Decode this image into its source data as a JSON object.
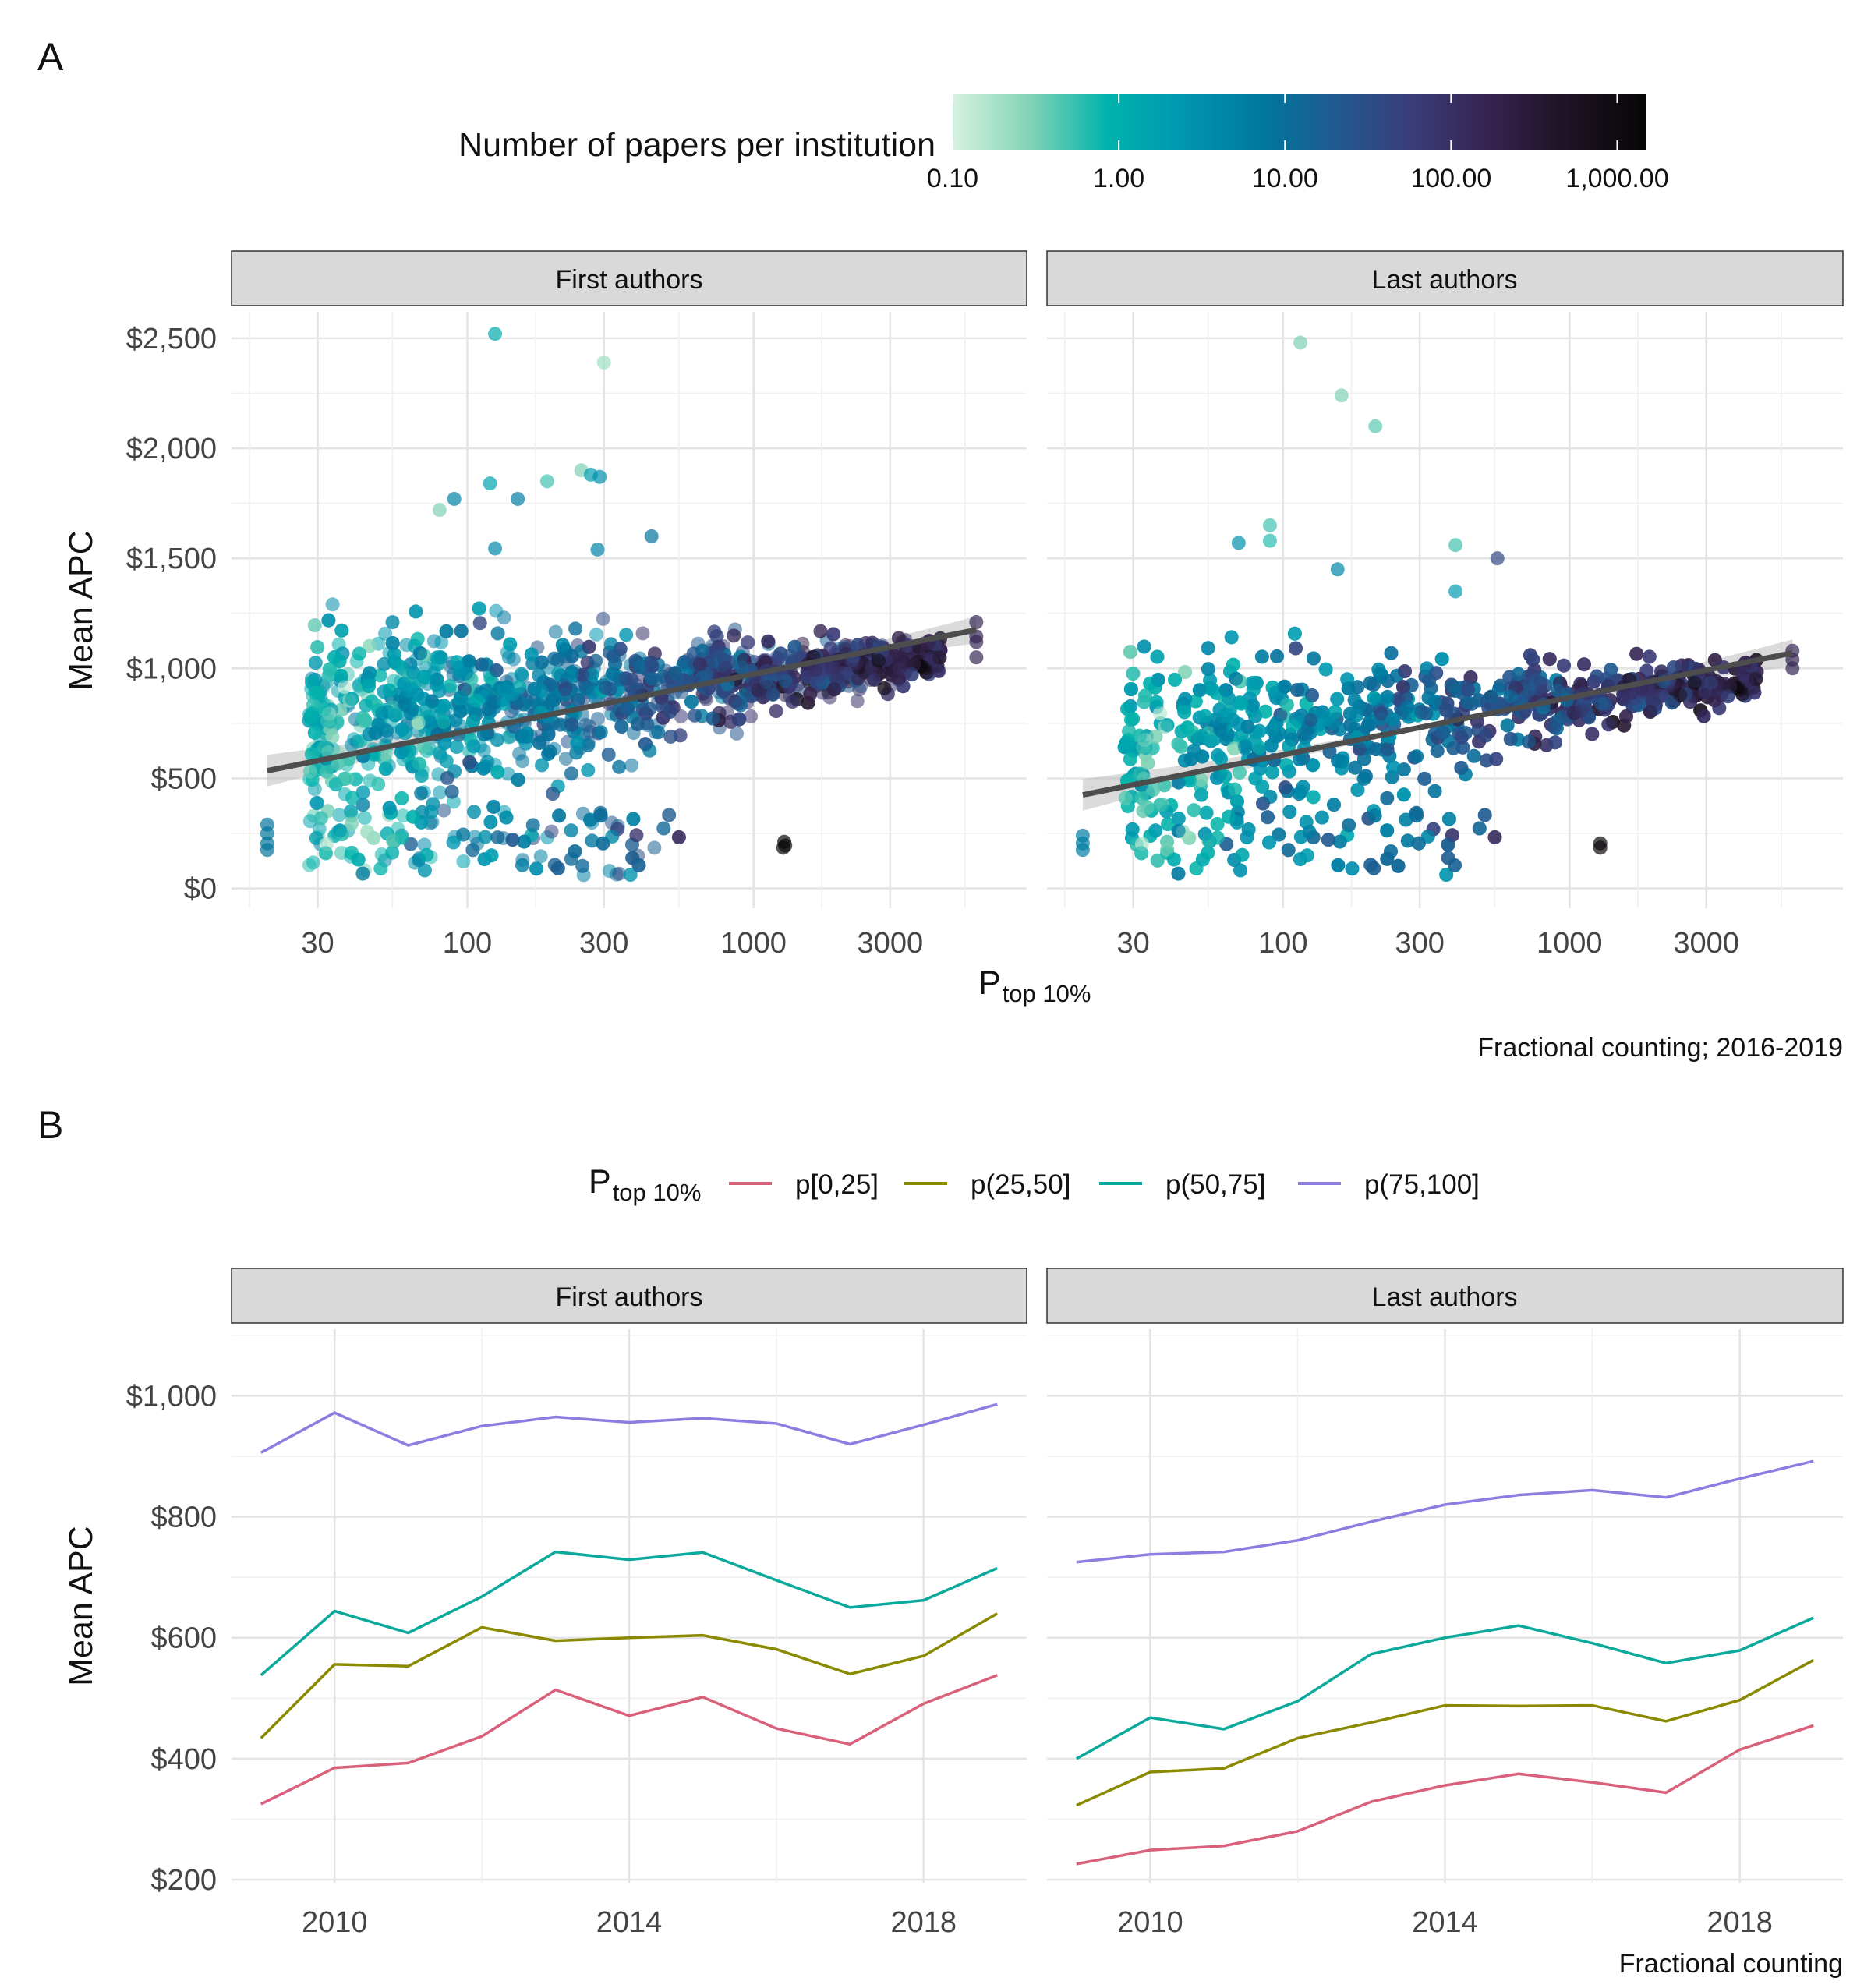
{
  "panel_labels": {
    "a": "A",
    "b": "B"
  },
  "colors": {
    "colorbar": [
      "#d6f2e1",
      "#83d3b6",
      "#00b3ac",
      "#0096b0",
      "#00789f",
      "#21598f",
      "#3a3b78",
      "#35234d",
      "#1d1322",
      "#060606"
    ],
    "regression_line": "#4d4d4d",
    "ribbon": "#bdbdbd",
    "p0_25": "#d9607a",
    "p25_50": "#8a8a00",
    "p50_75": "#0ba89c",
    "p75_100": "#8c7ee0"
  },
  "chart_data": [
    {
      "type": "scatter",
      "title": "",
      "xlabel": "P",
      "xlabel_sub": "top 10%",
      "ylabel": "Mean APC",
      "x_scale": "log10",
      "xlim": [
        15,
        9000
      ],
      "ylim": [
        -90,
        2620
      ],
      "x_ticks": [
        30,
        100,
        300,
        1000,
        3000
      ],
      "x_tick_labels": [
        "30",
        "100",
        "300",
        "1000",
        "3000"
      ],
      "y_ticks": [
        0,
        500,
        1000,
        1500,
        2000,
        2500
      ],
      "y_tick_labels": [
        "$0",
        "$500",
        "$1,000",
        "$1,500",
        "$2,000",
        "$2,500"
      ],
      "grid": true,
      "legend_position": "top",
      "color_legend": {
        "title": "Number of papers per institution",
        "scale": "log10",
        "range": [
          0.1,
          1500
        ],
        "ticks": [
          0.1,
          1,
          10,
          100,
          1000
        ],
        "tick_labels": [
          "0.10",
          "1.00",
          "10.00",
          "100.00",
          "1,000.00"
        ]
      },
      "caption": "Fractional counting; 2016-2019",
      "facets": [
        {
          "name": "First authors",
          "trend": {
            "x": [
              20,
              6000
            ],
            "y": [
              535,
              1175
            ]
          },
          "highlighted_points": [
            {
              "x": 125,
              "y": 2520,
              "papers": 1.2
            },
            {
              "x": 300,
              "y": 2390,
              "papers": 0.2
            },
            {
              "x": 250,
              "y": 1900,
              "papers": 0.3
            },
            {
              "x": 270,
              "y": 1880,
              "papers": 2
            },
            {
              "x": 290,
              "y": 1870,
              "papers": 3
            },
            {
              "x": 90,
              "y": 1770,
              "papers": 5
            },
            {
              "x": 120,
              "y": 1840,
              "papers": 1.5
            },
            {
              "x": 190,
              "y": 1850,
              "papers": 0.5
            },
            {
              "x": 80,
              "y": 1720,
              "papers": 0.3
            },
            {
              "x": 150,
              "y": 1770,
              "papers": 6
            },
            {
              "x": 125,
              "y": 1545,
              "papers": 4
            },
            {
              "x": 285,
              "y": 1540,
              "papers": 5
            },
            {
              "x": 440,
              "y": 1600,
              "papers": 8
            },
            {
              "x": 1280,
              "y": 212,
              "papers": 1100
            },
            {
              "x": 1290,
              "y": 195,
              "papers": 1200
            },
            {
              "x": 1270,
              "y": 185,
              "papers": 1000
            },
            {
              "x": 20,
              "y": 290,
              "papers": 8
            },
            {
              "x": 20,
              "y": 250,
              "papers": 8
            },
            {
              "x": 20,
              "y": 205,
              "papers": 8
            },
            {
              "x": 20,
              "y": 175,
              "papers": 8
            },
            {
              "x": 6000,
              "y": 1210,
              "papers": 150
            },
            {
              "x": 6000,
              "y": 1145,
              "papers": 150
            },
            {
              "x": 6000,
              "y": 1120,
              "papers": 150
            },
            {
              "x": 6000,
              "y": 1050,
              "papers": 150
            }
          ]
        },
        {
          "name": "Last authors",
          "trend": {
            "x": [
              20,
              6000
            ],
            "y": [
              425,
              1070
            ]
          },
          "highlighted_points": [
            {
              "x": 115,
              "y": 2480,
              "papers": 0.3
            },
            {
              "x": 160,
              "y": 2240,
              "papers": 0.3
            },
            {
              "x": 210,
              "y": 2100,
              "papers": 0.4
            },
            {
              "x": 90,
              "y": 1650,
              "papers": 0.5
            },
            {
              "x": 90,
              "y": 1580,
              "papers": 0.6
            },
            {
              "x": 70,
              "y": 1570,
              "papers": 3
            },
            {
              "x": 400,
              "y": 1560,
              "papers": 0.5
            },
            {
              "x": 155,
              "y": 1450,
              "papers": 4
            },
            {
              "x": 560,
              "y": 1500,
              "papers": 40
            },
            {
              "x": 400,
              "y": 1350,
              "papers": 2
            },
            {
              "x": 1280,
              "y": 205,
              "papers": 1100
            },
            {
              "x": 1280,
              "y": 185,
              "papers": 1000
            },
            {
              "x": 20,
              "y": 240,
              "papers": 6
            },
            {
              "x": 20,
              "y": 205,
              "papers": 6
            },
            {
              "x": 20,
              "y": 175,
              "papers": 6
            },
            {
              "x": 6000,
              "y": 1080,
              "papers": 150
            },
            {
              "x": 6000,
              "y": 1040,
              "papers": 150
            },
            {
              "x": 6000,
              "y": 1000,
              "papers": 150
            }
          ]
        }
      ]
    },
    {
      "type": "line",
      "title": "",
      "xlabel": "",
      "ylabel": "Mean APC",
      "xlim": [
        2008.6,
        2019.4
      ],
      "ylim": [
        195,
        1110
      ],
      "x_ticks": [
        2010,
        2014,
        2018
      ],
      "x_tick_labels": [
        "2010",
        "2014",
        "2018"
      ],
      "y_ticks": [
        200,
        400,
        600,
        800,
        1000
      ],
      "y_tick_labels": [
        "$200",
        "$400",
        "$600",
        "$800",
        "$1,000"
      ],
      "grid": true,
      "legend_position": "top",
      "legend_title": "P",
      "legend_title_sub": "top 10%",
      "caption": "Fractional counting",
      "x": [
        2009,
        2010,
        2011,
        2012,
        2013,
        2014,
        2015,
        2016,
        2017,
        2018,
        2019
      ],
      "facets": [
        {
          "name": "First authors",
          "series": [
            {
              "name": "p[0,25]",
              "color_key": "p0_25",
              "values": [
                325,
                385,
                393,
                437,
                514,
                471,
                502,
                450,
                424,
                491,
                538
              ]
            },
            {
              "name": "p(25,50]",
              "color_key": "p25_50",
              "values": [
                434,
                556,
                553,
                617,
                595,
                600,
                604,
                581,
                540,
                570,
                640
              ]
            },
            {
              "name": "p(50,75]",
              "color_key": "p50_75",
              "values": [
                538,
                644,
                608,
                668,
                742,
                729,
                741,
                695,
                650,
                662,
                715
              ]
            },
            {
              "name": "p(75,100]",
              "color_key": "p75_100",
              "values": [
                906,
                972,
                918,
                950,
                965,
                956,
                963,
                954,
                920,
                952,
                986
              ]
            }
          ]
        },
        {
          "name": "Last authors",
          "series": [
            {
              "name": "p[0,25]",
              "color_key": "p0_25",
              "values": [
                226,
                249,
                256,
                280,
                329,
                356,
                375,
                361,
                344,
                415,
                455
              ]
            },
            {
              "name": "p(25,50]",
              "color_key": "p25_50",
              "values": [
                323,
                378,
                384,
                434,
                460,
                488,
                487,
                488,
                462,
                497,
                563
              ]
            },
            {
              "name": "p(50,75]",
              "color_key": "p50_75",
              "values": [
                400,
                468,
                449,
                495,
                573,
                600,
                620,
                591,
                558,
                579,
                633
              ]
            },
            {
              "name": "p(75,100]",
              "color_key": "p75_100",
              "values": [
                725,
                738,
                742,
                761,
                792,
                820,
                836,
                844,
                832,
                863,
                892
              ]
            }
          ]
        }
      ]
    }
  ]
}
